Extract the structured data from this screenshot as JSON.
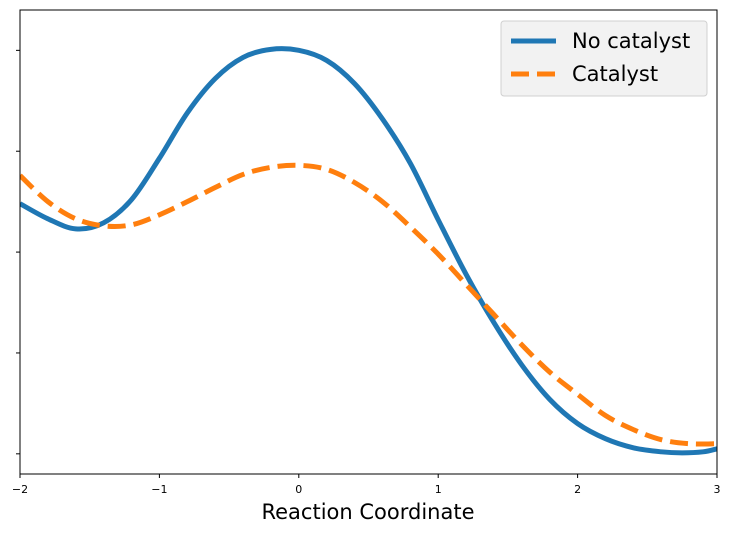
{
  "chart_data": {
    "type": "line",
    "xlabel": "Reaction Coordinate",
    "ylabel": "",
    "xlim": [
      -2,
      3
    ],
    "ylim": [
      -0.2,
      4.4
    ],
    "x_ticks": [
      -2,
      -1,
      0,
      1,
      2,
      3
    ],
    "x_tick_labels": [
      "−2",
      "−1",
      "0",
      "1",
      "2",
      "3"
    ],
    "y_ticks": [
      0,
      1,
      2,
      3,
      4
    ],
    "y_tick_labels_visible": false,
    "grid": false,
    "legend_position": "top-right",
    "series": [
      {
        "name": "No catalyst",
        "color": "#1f77b4",
        "style": "solid",
        "points": [
          [
            -2.0,
            2.48
          ],
          [
            -1.8,
            2.33
          ],
          [
            -1.6,
            2.23
          ],
          [
            -1.4,
            2.29
          ],
          [
            -1.2,
            2.52
          ],
          [
            -1.0,
            2.93
          ],
          [
            -0.8,
            3.38
          ],
          [
            -0.6,
            3.72
          ],
          [
            -0.4,
            3.93
          ],
          [
            -0.2,
            4.01
          ],
          [
            0.0,
            4.0
          ],
          [
            0.2,
            3.9
          ],
          [
            0.4,
            3.67
          ],
          [
            0.6,
            3.32
          ],
          [
            0.8,
            2.88
          ],
          [
            1.0,
            2.32
          ],
          [
            1.2,
            1.78
          ],
          [
            1.4,
            1.3
          ],
          [
            1.6,
            0.88
          ],
          [
            1.8,
            0.54
          ],
          [
            2.0,
            0.3
          ],
          [
            2.2,
            0.15
          ],
          [
            2.4,
            0.06
          ],
          [
            2.6,
            0.02
          ],
          [
            2.75,
            0.01
          ],
          [
            2.9,
            0.02
          ],
          [
            3.0,
            0.05
          ]
        ]
      },
      {
        "name": "Catalyst",
        "color": "#ff7f0e",
        "style": "dashed",
        "points": [
          [
            -2.0,
            2.76
          ],
          [
            -1.8,
            2.5
          ],
          [
            -1.6,
            2.33
          ],
          [
            -1.4,
            2.26
          ],
          [
            -1.2,
            2.27
          ],
          [
            -1.0,
            2.37
          ],
          [
            -0.8,
            2.5
          ],
          [
            -0.6,
            2.64
          ],
          [
            -0.4,
            2.77
          ],
          [
            -0.2,
            2.84
          ],
          [
            0.0,
            2.86
          ],
          [
            0.2,
            2.82
          ],
          [
            0.4,
            2.69
          ],
          [
            0.6,
            2.5
          ],
          [
            0.8,
            2.25
          ],
          [
            1.0,
            1.98
          ],
          [
            1.2,
            1.68
          ],
          [
            1.4,
            1.38
          ],
          [
            1.6,
            1.08
          ],
          [
            1.8,
            0.81
          ],
          [
            2.0,
            0.59
          ],
          [
            2.2,
            0.38
          ],
          [
            2.4,
            0.24
          ],
          [
            2.6,
            0.14
          ],
          [
            2.8,
            0.1
          ],
          [
            3.0,
            0.1
          ]
        ]
      }
    ]
  }
}
